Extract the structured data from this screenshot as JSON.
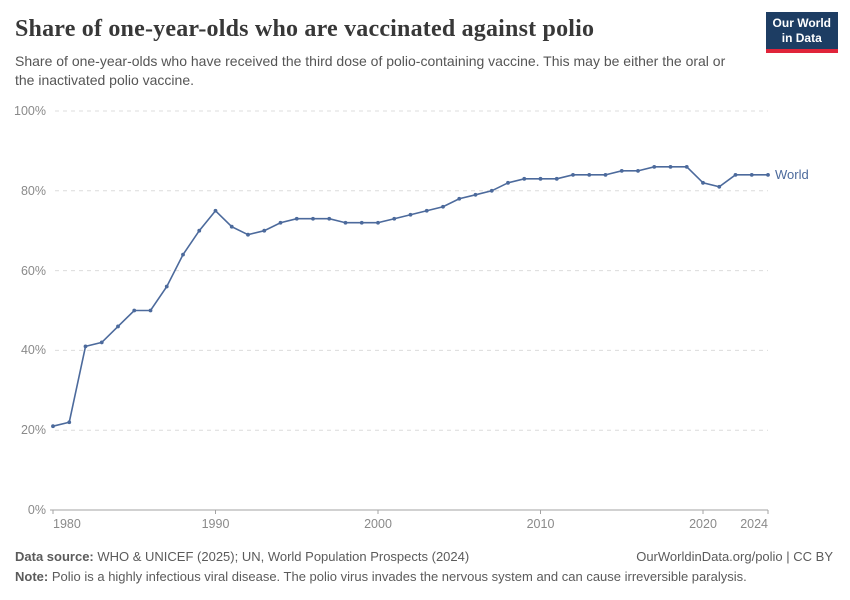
{
  "header": {
    "title": "Share of one-year-olds who are vaccinated against polio",
    "subtitle": "Share of one-year-olds who have received the third dose of polio-containing vaccine. This may be either the oral or the inactivated polio vaccine.",
    "logo": {
      "line1": "Our World",
      "line2": "in Data",
      "bg_color": "#1d3d63",
      "accent_color": "#e0243a"
    }
  },
  "chart_data": {
    "type": "line",
    "title": "Share of one-year-olds who are vaccinated against polio",
    "xlabel": "",
    "ylabel": "",
    "xlim": [
      1980,
      2024
    ],
    "ylim": [
      0,
      100
    ],
    "grid": "horizontal-dashed",
    "legend_position": "end-of-line",
    "x": [
      1980,
      1981,
      1982,
      1983,
      1984,
      1985,
      1986,
      1987,
      1988,
      1989,
      1990,
      1991,
      1992,
      1993,
      1994,
      1995,
      1996,
      1997,
      1998,
      1999,
      2000,
      2001,
      2002,
      2003,
      2004,
      2005,
      2006,
      2007,
      2008,
      2009,
      2010,
      2011,
      2012,
      2013,
      2014,
      2015,
      2016,
      2017,
      2018,
      2019,
      2020,
      2021,
      2022,
      2023,
      2024
    ],
    "series": [
      {
        "name": "World",
        "color": "#4c6a9c",
        "values": [
          21,
          22,
          41,
          42,
          46,
          50,
          50,
          56,
          64,
          70,
          75,
          71,
          69,
          70,
          72,
          73,
          73,
          73,
          72,
          72,
          72,
          73,
          74,
          75,
          76,
          78,
          79,
          80,
          82,
          83,
          83,
          83,
          84,
          84,
          84,
          85,
          85,
          86,
          86,
          86,
          82,
          81,
          84,
          84,
          84
        ]
      }
    ],
    "y_gridlines": [
      0,
      20,
      40,
      60,
      80,
      100
    ],
    "y_tick_labels": [
      "0%",
      "20%",
      "40%",
      "60%",
      "80%",
      "100%"
    ],
    "x_tick_years": [
      1980,
      1990,
      2000,
      2010,
      2020,
      2024
    ],
    "x_tick_labels": [
      "1980",
      "1990",
      "2000",
      "2010",
      "2020",
      "2024"
    ],
    "colors": {
      "grid": "#dcdcdc",
      "axis": "#a3a3a3",
      "tick_text": "#8a8a8a"
    }
  },
  "footer": {
    "datasource_label": "Data source:",
    "datasource_text": " WHO & UNICEF (2025); UN, World Population Prospects (2024)",
    "link_text": "OurWorldinData.org/polio | CC BY",
    "note_label": "Note:",
    "note_text": " Polio is a highly infectious viral disease. The polio virus invades the nervous system and can cause irreversible paralysis."
  }
}
